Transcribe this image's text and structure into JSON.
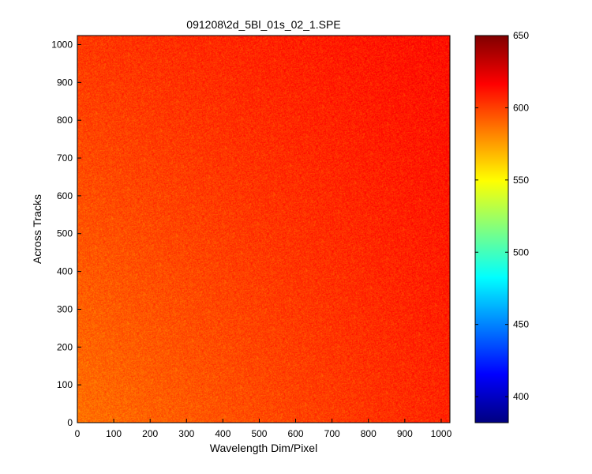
{
  "chart_data": {
    "type": "heatmap",
    "title": "091208\\2d_5Bl_01s_02_1.SPE",
    "xlabel": "Wavelength Dim/Pixel",
    "ylabel": "Across Tracks",
    "xlim": [
      0,
      1024
    ],
    "ylim": [
      0,
      1024
    ],
    "x_ticks": [
      0,
      100,
      200,
      300,
      400,
      500,
      600,
      700,
      800,
      900,
      1000
    ],
    "y_ticks": [
      0,
      100,
      200,
      300,
      400,
      500,
      600,
      700,
      800,
      900,
      1000
    ],
    "colorbar": {
      "range": [
        382,
        650
      ],
      "ticks": [
        400,
        450,
        500,
        550,
        600,
        650
      ],
      "colormap": "jet"
    },
    "corner_values": {
      "bottom_left": 587,
      "bottom_right": 607,
      "top_left": 602,
      "top_right": 613
    },
    "noise_amplitude": 9,
    "grid": false
  }
}
